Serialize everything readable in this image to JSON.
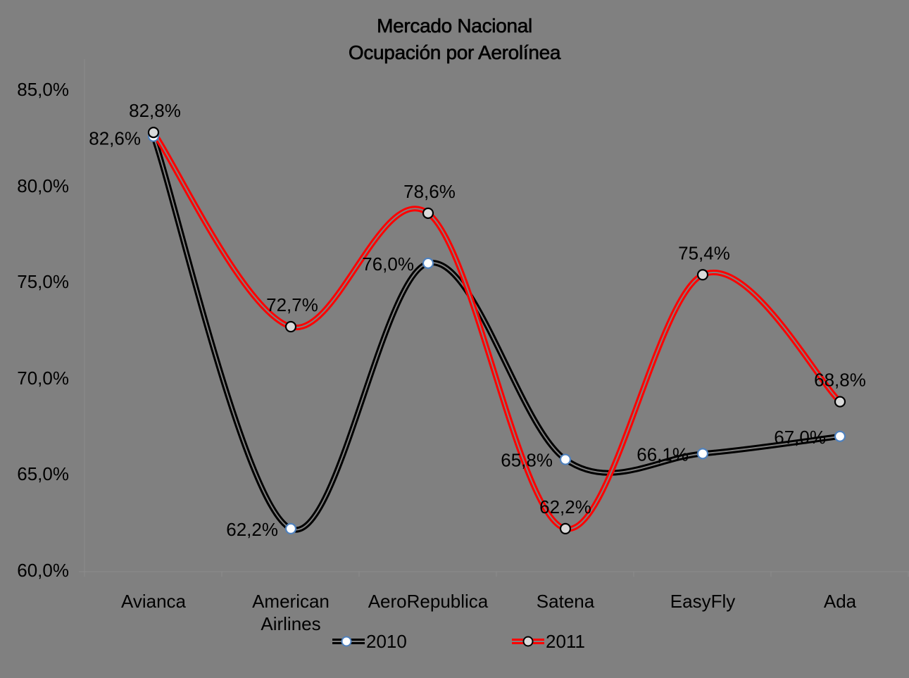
{
  "chart_data": {
    "type": "line",
    "title": "Mercado Nacional",
    "subtitle": "Ocupación por Aerolínea",
    "xlabel": "",
    "ylabel": "",
    "categories": [
      "Avianca",
      "American Airlines",
      "AeroRepublica",
      "Satena",
      "EasyFly",
      "Ada"
    ],
    "category_lines": [
      [
        "Avianca"
      ],
      [
        "American",
        "Airlines"
      ],
      [
        "AeroRepublica"
      ],
      [
        "Satena"
      ],
      [
        "EasyFly"
      ],
      [
        "Ada"
      ]
    ],
    "series": [
      {
        "name": "2010",
        "values": [
          82.6,
          62.2,
          76.0,
          65.8,
          66.1,
          67.0
        ],
        "labels": [
          "82,6%",
          "62,2%",
          "76,0%",
          "65,8%",
          "66,1%",
          "67,0%"
        ],
        "line_color": "#000000",
        "marker_fill": "#FFFFFF",
        "marker_stroke": "#4F81BD"
      },
      {
        "name": "2011",
        "values": [
          82.8,
          72.7,
          78.6,
          62.2,
          75.4,
          68.8
        ],
        "labels": [
          "82,8%",
          "72,7%",
          "78,6%",
          "62,2%",
          "75,4%",
          "68,8%"
        ],
        "line_color": "#FF0000",
        "marker_fill": "#D9D9D9",
        "marker_stroke": "#000000"
      }
    ],
    "ylim": [
      60,
      85
    ],
    "yticks": [
      85,
      80,
      75,
      70,
      65,
      60
    ],
    "ytick_labels": [
      "85,0%",
      "80,0%",
      "75,0%",
      "70,0%",
      "65,0%",
      "60,0%"
    ],
    "smooth": true,
    "grid": false,
    "legend_position": "bottom"
  },
  "colors": {
    "background": "#808080",
    "axis": "#8C8C8C",
    "line_inner": "#808080"
  }
}
